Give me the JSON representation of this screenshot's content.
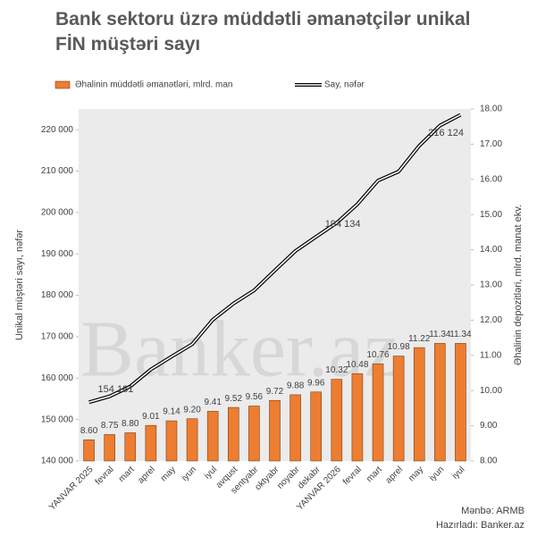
{
  "chart_data": {
    "type": "bar_line",
    "title": "Bank sektoru üzrə müddətli əmanətçilər unikal FİN müştəri sayı",
    "ylabel": "Unikal müştəri sayı, nəfər",
    "y2label": "Əhalinin depozitləri, mlrd. manat ekv.",
    "watermark": "Banker.az",
    "source": "Mənbə: ARMB",
    "prepared": "Hazırladı: Banker.az",
    "categories": [
      "YANVAR 2025",
      "fevral",
      "mart",
      "aprel",
      "may",
      "iyun",
      "iyul",
      "avqust",
      "sentyabr",
      "oktyabr",
      "noyabr",
      "dekabr",
      "YANVAR 2026",
      "fevral",
      "mart",
      "aprel",
      "may",
      "iyun",
      "iyul"
    ],
    "series": [
      {
        "name": "Əhalinin müddətli əmanətləri, mlrd. man",
        "type": "bar",
        "axis": "y2",
        "color": "#ed7d31",
        "values": [
          8.6,
          8.75,
          8.8,
          9.01,
          9.14,
          9.2,
          9.41,
          9.52,
          9.56,
          9.72,
          9.88,
          9.96,
          10.32,
          10.48,
          10.76,
          10.98,
          11.22,
          11.34,
          11.34
        ],
        "value_labels": [
          "8.60",
          "8.75",
          "8.80",
          "9.01",
          "9.14",
          "9.20",
          "9.41",
          "9.52",
          "9.56",
          "9.72",
          "9.88",
          "9.96",
          "10.32",
          "10.48",
          "10.76",
          "10.98",
          "11.22",
          "11.34",
          "11.34"
        ]
      },
      {
        "name": "Say, nəfər",
        "type": "line",
        "axis": "y",
        "color": "#000000",
        "values": [
          154181,
          155600,
          158000,
          162100,
          165200,
          168200,
          174100,
          178000,
          181200,
          186000,
          190700,
          194134,
          197500,
          202000,
          207700,
          209900,
          216124,
          221000,
          223600
        ],
        "value_labels": [
          "154 181",
          null,
          null,
          null,
          null,
          null,
          null,
          null,
          null,
          null,
          null,
          "194 134",
          null,
          null,
          null,
          null,
          "216 124",
          null,
          null
        ]
      }
    ],
    "ylim": [
      140000,
      225000
    ],
    "yticks": [
      {
        "value": 140000,
        "label": "140 000"
      },
      {
        "value": 150000,
        "label": "150 000"
      },
      {
        "value": 160000,
        "label": "160 000"
      },
      {
        "value": 170000,
        "label": "170 000"
      },
      {
        "value": 180000,
        "label": "180 000"
      },
      {
        "value": 190000,
        "label": "190 000"
      },
      {
        "value": 200000,
        "label": "200 000"
      },
      {
        "value": 210000,
        "label": "210 000"
      },
      {
        "value": 220000,
        "label": "220 000"
      }
    ],
    "y2lim": [
      8,
      18
    ],
    "y2ticks": [
      {
        "value": 8,
        "label": "8.00"
      },
      {
        "value": 9,
        "label": "9.00"
      },
      {
        "value": 10,
        "label": "10.00"
      },
      {
        "value": 11,
        "label": "11.00"
      },
      {
        "value": 12,
        "label": "12.00"
      },
      {
        "value": 13,
        "label": "13.00"
      },
      {
        "value": 14,
        "label": "14.00"
      },
      {
        "value": 15,
        "label": "15.00"
      },
      {
        "value": 16,
        "label": "16.00"
      },
      {
        "value": 17,
        "label": "17.00"
      },
      {
        "value": 18,
        "label": "18.00"
      }
    ],
    "plot_background": "#ebebeb"
  }
}
